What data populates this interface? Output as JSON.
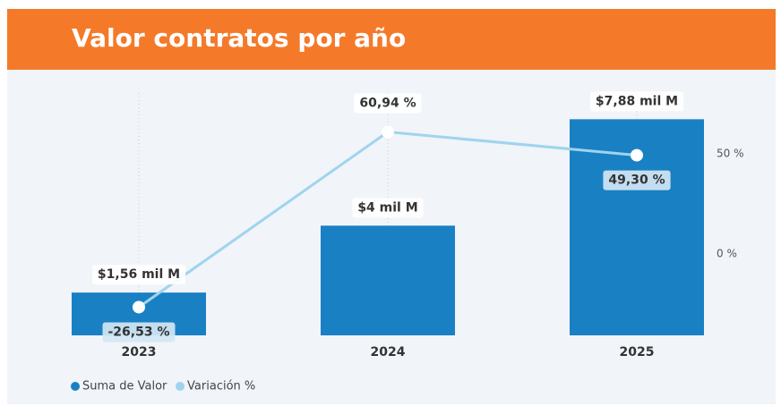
{
  "chart_data": {
    "type": "combo",
    "title": "Valor contratos por año",
    "categories": [
      "2023",
      "2024",
      "2025"
    ],
    "series": [
      {
        "name": "Suma de Valor",
        "type": "bar",
        "color": "#1a80c4",
        "values": [
          1.56,
          4,
          7.88
        ],
        "value_labels": [
          "$1,56 mil M",
          "$4 mil M",
          "$7,88 mil M"
        ]
      },
      {
        "name": "Variación %",
        "type": "line",
        "axis": "y2",
        "color": "#9fd4ee",
        "values": [
          -26.53,
          60.94,
          49.3
        ],
        "value_labels": [
          "-26,53 %",
          "60,94 %",
          "49,30 %"
        ]
      }
    ],
    "ylim": [
      0,
      9
    ],
    "y2lim": [
      -40.6,
      82.6
    ],
    "y2ticks": [
      {
        "value": 0,
        "label": "0 %"
      },
      {
        "value": 50,
        "label": "50 %"
      }
    ],
    "grid": false,
    "legend": "bottom-left"
  }
}
